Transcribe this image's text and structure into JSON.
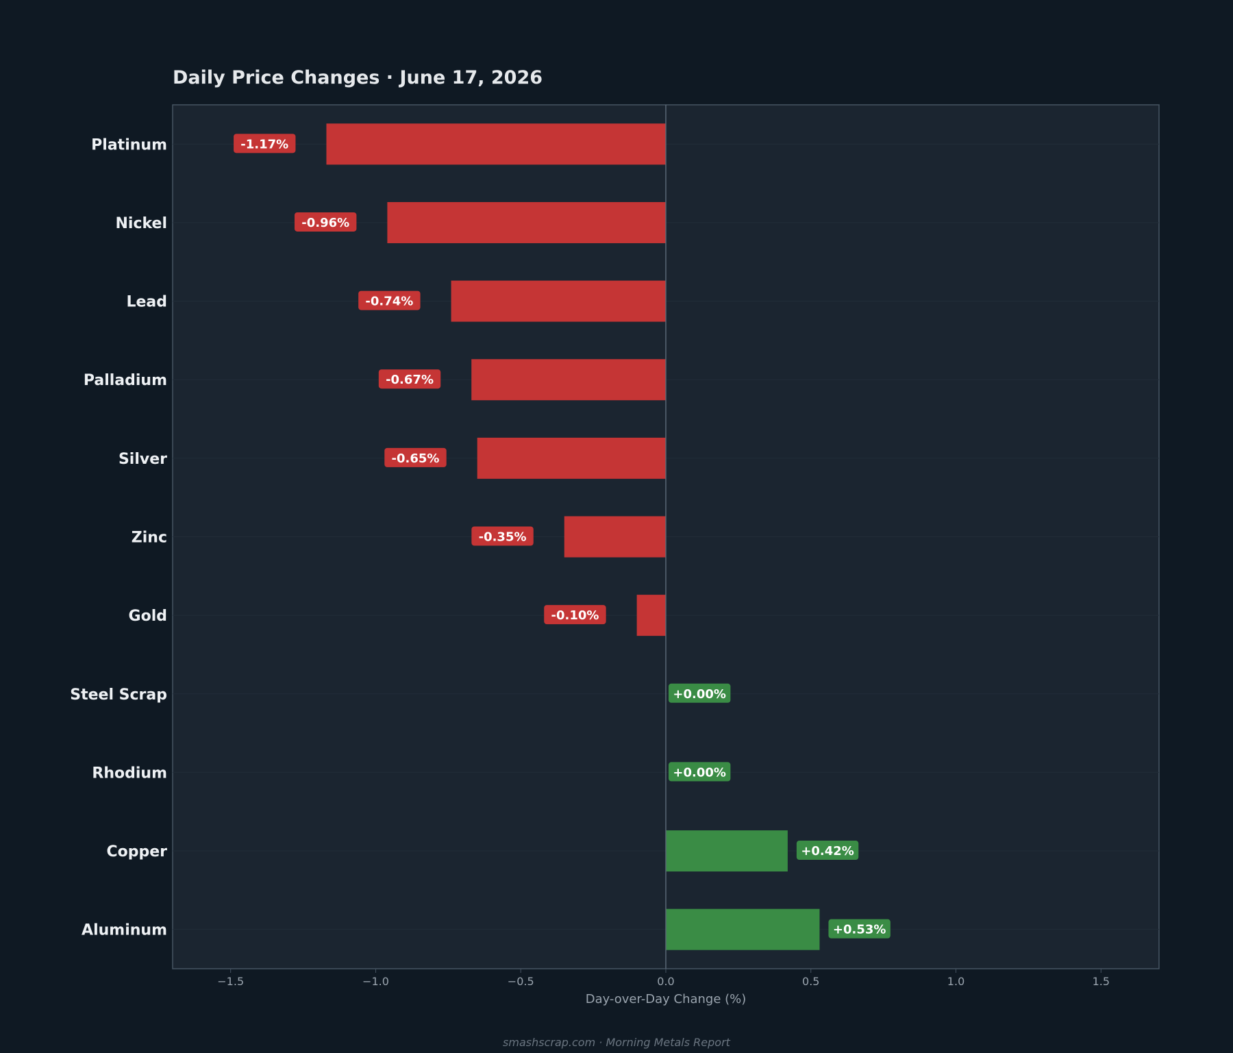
{
  "title": "Daily Price Changes  ·  June 17, 2026",
  "footer": "smashscrap.com  ·  Morning Metals Report",
  "colors": {
    "page_bg": "#0f1923",
    "plot_bg": "#1b2530",
    "frame": "#475563",
    "zero_line": "#5b6875",
    "negative": "#c53535",
    "positive": "#3a8c45",
    "title_text": "#e6e9ec",
    "label_text": "#eef1f4",
    "tick_text": "#9aa4ae",
    "footer_text": "#6a7580"
  },
  "chart_data": {
    "type": "bar",
    "orientation": "horizontal",
    "title": "Daily Price Changes  ·  June 17, 2026",
    "xlabel": "Day-over-Day Change (%)",
    "ylabel": "",
    "xlim": [
      -1.7,
      1.7
    ],
    "xticks": [
      -1.5,
      -1.0,
      -0.5,
      0.0,
      0.5,
      1.0,
      1.5
    ],
    "xtick_labels": [
      "−1.5",
      "−1.0",
      "−0.5",
      "0.0",
      "0.5",
      "1.0",
      "1.5"
    ],
    "categories": [
      "Platinum",
      "Nickel",
      "Lead",
      "Palladium",
      "Silver",
      "Zinc",
      "Gold",
      "Steel Scrap",
      "Rhodium",
      "Copper",
      "Aluminum"
    ],
    "values": [
      -1.17,
      -0.96,
      -0.74,
      -0.67,
      -0.65,
      -0.35,
      -0.1,
      0.0,
      0.0,
      0.42,
      0.53
    ],
    "data_labels": [
      "-1.17%",
      "-0.96%",
      "-0.74%",
      "-0.67%",
      "-0.65%",
      "-0.35%",
      "-0.10%",
      "+0.00%",
      "+0.00%",
      "+0.42%",
      "+0.53%"
    ],
    "grid": false
  }
}
